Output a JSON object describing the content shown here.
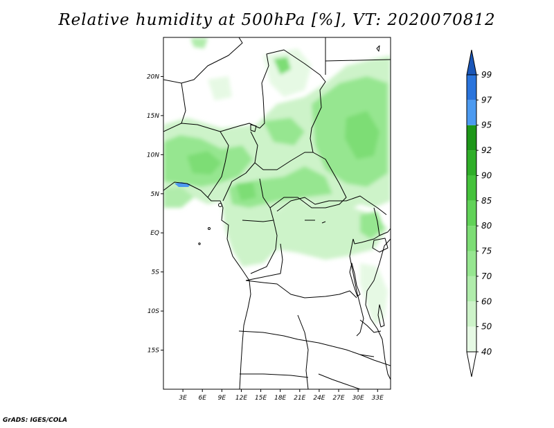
{
  "title": "Relative humidity at 500hPa [%], VT: 2020070812",
  "credit": "GrADS: IGES/COLA",
  "map": {
    "lat_ticks": [
      "20N",
      "15N",
      "10N",
      "5N",
      "EQ",
      "5S",
      "10S",
      "15S"
    ],
    "lon_ticks": [
      "3E",
      "6E",
      "9E",
      "12E",
      "15E",
      "18E",
      "21E",
      "24E",
      "27E",
      "30E",
      "33E"
    ],
    "lat_values": [
      20,
      15,
      10,
      5,
      0,
      -5,
      -10,
      -15
    ],
    "lon_values": [
      3,
      6,
      9,
      12,
      15,
      18,
      21,
      24,
      27,
      30,
      33
    ],
    "lon_range": [
      0,
      35
    ],
    "lat_range": [
      -20,
      25
    ]
  },
  "colorbar": {
    "labels": [
      "40",
      "50",
      "60",
      "70",
      "75",
      "80",
      "85",
      "90",
      "92",
      "95",
      "97",
      "99"
    ],
    "colors": [
      "#ffffff",
      "#e6f9e4",
      "#cdf3c9",
      "#b0ecab",
      "#96e690",
      "#7ddd75",
      "#61d258",
      "#45c23b",
      "#2fae28",
      "#1d9618",
      "#4c9af0",
      "#2a74dc",
      "#1a56b8"
    ]
  }
}
